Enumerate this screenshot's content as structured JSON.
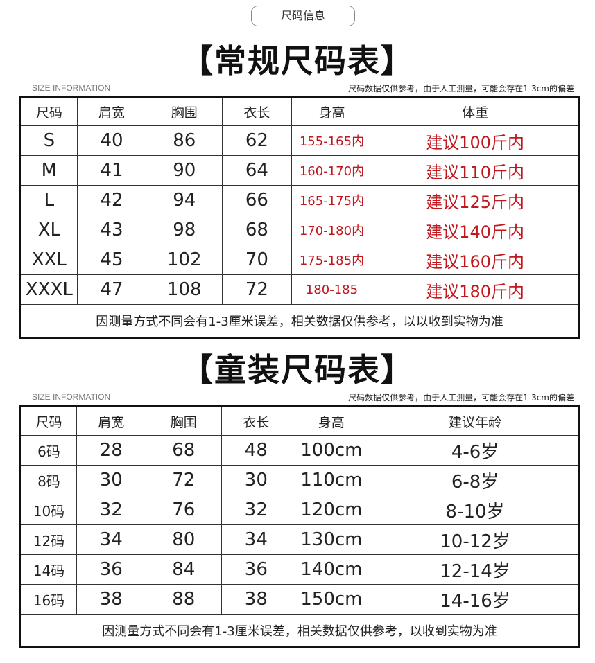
{
  "badge": "尺码信息",
  "adult": {
    "title": "【常规尺码表】",
    "size_info": "SIZE INFORMATION",
    "note": "尺码数据仅供参考，由于人工测量，可能会存在1-3cm的偏差",
    "headers": [
      "尺码",
      "肩宽",
      "胸围",
      "衣长",
      "身高",
      "体重"
    ],
    "rows": [
      [
        "S",
        "40",
        "86",
        "62",
        "155-165内",
        "建议100斤内"
      ],
      [
        "M",
        "41",
        "90",
        "64",
        "160-170内",
        "建议110斤内"
      ],
      [
        "L",
        "42",
        "94",
        "66",
        "165-175内",
        "建议125斤内"
      ],
      [
        "XL",
        "43",
        "98",
        "68",
        "170-180内",
        "建议140斤内"
      ],
      [
        "XXL",
        "45",
        "102",
        "70",
        "175-185内",
        "建议160斤内"
      ],
      [
        "XXXL",
        "47",
        "108",
        "72",
        "180-185",
        "建议180斤内"
      ]
    ],
    "footer": "因测量方式不同会有1-3厘米误差，相关数据仅供参考，以以收到实物为准"
  },
  "kids": {
    "title": "【童装尺码表】",
    "size_info": "SIZE INFORMATION",
    "note": "尺码数据仅供参考，由于人工测量，可能会存在1-3cm的偏差",
    "headers": [
      "尺码",
      "肩宽",
      "胸围",
      "衣长",
      "身高",
      "建议年龄"
    ],
    "rows": [
      [
        "6码",
        "28",
        "68",
        "48",
        "100cm",
        "4-6岁"
      ],
      [
        "8码",
        "30",
        "72",
        "30",
        "110cm",
        "6-8岁"
      ],
      [
        "10码",
        "32",
        "76",
        "32",
        "120cm",
        "8-10岁"
      ],
      [
        "12码",
        "34",
        "80",
        "34",
        "130cm",
        "10-12岁"
      ],
      [
        "14码",
        "36",
        "84",
        "36",
        "140cm",
        "12-14岁"
      ],
      [
        "16码",
        "38",
        "88",
        "38",
        "150cm",
        "14-16岁"
      ]
    ],
    "footer": "因测量方式不同会有1-3厘米误差，相关数据仅供参考，以收到实物为准"
  },
  "colors": {
    "accent": "#c0161c"
  }
}
